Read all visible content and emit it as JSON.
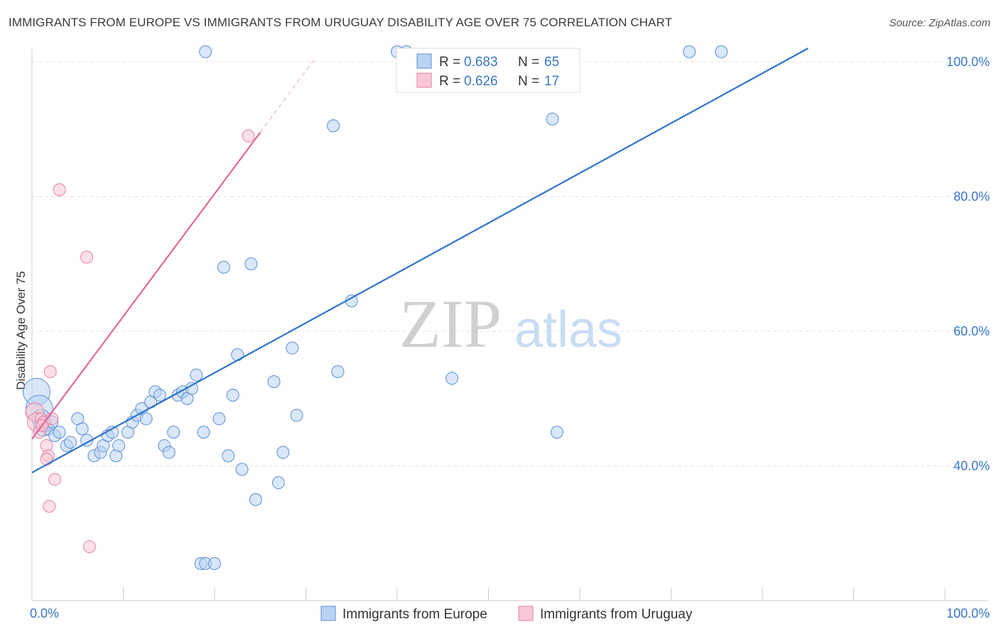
{
  "header": {
    "title": "IMMIGRANTS FROM EUROPE VS IMMIGRANTS FROM URUGUAY DISABILITY AGE OVER 75 CORRELATION CHART",
    "source": "Source: ZipAtlas.com"
  },
  "watermark": {
    "zip": "ZIP",
    "atlas": "atlas"
  },
  "colors": {
    "blue": "#5b8fd6",
    "blue_fill": "#b9d3f3",
    "blue_line": "#2f73c8",
    "pink": "#e57fa3",
    "pink_fill": "#f8c7d6",
    "pink_line": "#e0689a",
    "axis_text": "#3a76c5",
    "grid": "#e3e3e3"
  },
  "stats_legend": [
    {
      "r_label": "R = ",
      "r_value": "0.683",
      "n_label": "N = ",
      "n_value": "65",
      "color": "blue"
    },
    {
      "r_label": "R = ",
      "r_value": "0.626",
      "n_label": "N = ",
      "n_value": "17",
      "color": "pink"
    }
  ],
  "chart_data": {
    "type": "scatter",
    "title": "IMMIGRANTS FROM EUROPE VS IMMIGRANTS FROM URUGUAY DISABILITY AGE OVER 75 CORRELATION CHART",
    "xlabel": "",
    "ylabel": "Disability Age Over 75",
    "xlim": [
      0,
      100
    ],
    "ylim": [
      20,
      102
    ],
    "x_tick_labels": [
      "0.0%",
      "100.0%"
    ],
    "y_ticks": [
      40,
      60,
      80,
      100
    ],
    "y_tick_labels": [
      "40.0%",
      "60.0%",
      "80.0%",
      "100.0%"
    ],
    "legend": [
      "Immigrants from Europe",
      "Immigrants from Uruguay"
    ],
    "series": [
      {
        "name": "Immigrants from Europe",
        "color": "blue",
        "points": [
          [
            0.5,
            51.0,
            3
          ],
          [
            0.8,
            48.5,
            3
          ],
          [
            1.0,
            47.0,
            2
          ],
          [
            1.2,
            45.8,
            2
          ],
          [
            1.5,
            46.0,
            1
          ],
          [
            1.8,
            45.5,
            1
          ],
          [
            2.2,
            46.5,
            1
          ],
          [
            2.5,
            44.5,
            1
          ],
          [
            3.0,
            45.0,
            1
          ],
          [
            3.8,
            43.0,
            1
          ],
          [
            4.2,
            43.5,
            1
          ],
          [
            5.0,
            47.0,
            1
          ],
          [
            5.5,
            45.5,
            1
          ],
          [
            6.0,
            43.8,
            1
          ],
          [
            6.8,
            41.5,
            1
          ],
          [
            7.5,
            42.0,
            1
          ],
          [
            7.8,
            43.0,
            1
          ],
          [
            8.3,
            44.5,
            1
          ],
          [
            8.8,
            45.0,
            1
          ],
          [
            9.2,
            41.5,
            1
          ],
          [
            9.5,
            43.0,
            1
          ],
          [
            10.5,
            45.0,
            1
          ],
          [
            11.0,
            46.5,
            1
          ],
          [
            11.5,
            47.5,
            1
          ],
          [
            12.0,
            48.5,
            1
          ],
          [
            12.5,
            47.0,
            1
          ],
          [
            13.0,
            49.5,
            1
          ],
          [
            13.5,
            51.0,
            1
          ],
          [
            14.0,
            50.5,
            1
          ],
          [
            14.5,
            43.0,
            1
          ],
          [
            15.0,
            42.0,
            1
          ],
          [
            15.5,
            45.0,
            1
          ],
          [
            16.0,
            50.5,
            1
          ],
          [
            16.5,
            51.0,
            1
          ],
          [
            17.0,
            50.0,
            1
          ],
          [
            17.5,
            51.5,
            1
          ],
          [
            18.0,
            53.5,
            1
          ],
          [
            18.5,
            25.5,
            1
          ],
          [
            19.0,
            25.5,
            1
          ],
          [
            20.0,
            25.5,
            1
          ],
          [
            18.8,
            45.0,
            1
          ],
          [
            20.5,
            47.0,
            1
          ],
          [
            21.0,
            69.5,
            1
          ],
          [
            21.5,
            41.5,
            1
          ],
          [
            22.0,
            50.5,
            1
          ],
          [
            22.5,
            56.5,
            1
          ],
          [
            23.0,
            39.5,
            1
          ],
          [
            24.0,
            70.0,
            1
          ],
          [
            24.5,
            35.0,
            1
          ],
          [
            26.5,
            52.5,
            1
          ],
          [
            27.0,
            37.5,
            1
          ],
          [
            27.5,
            42.0,
            1
          ],
          [
            28.5,
            57.5,
            1
          ],
          [
            29.0,
            47.5,
            1
          ],
          [
            33.0,
            90.5,
            1
          ],
          [
            33.5,
            54.0,
            1
          ],
          [
            35.0,
            64.5,
            1
          ],
          [
            46.0,
            53.0,
            1
          ],
          [
            57.0,
            91.5,
            1
          ],
          [
            57.5,
            45.0,
            1
          ],
          [
            19.0,
            101.5,
            1
          ],
          [
            40.0,
            101.5,
            1
          ],
          [
            41.0,
            101.5,
            1
          ],
          [
            72.0,
            101.5,
            1
          ],
          [
            75.5,
            101.5,
            1
          ]
        ]
      },
      {
        "name": "Immigrants from Uruguay",
        "color": "pink",
        "points": [
          [
            0.3,
            48.0,
            2
          ],
          [
            0.5,
            46.5,
            2
          ],
          [
            0.8,
            45.0,
            1
          ],
          [
            1.0,
            47.0,
            1
          ],
          [
            1.3,
            46.5,
            1
          ],
          [
            1.6,
            43.0,
            1
          ],
          [
            1.8,
            41.5,
            1
          ],
          [
            2.0,
            54.0,
            1
          ],
          [
            2.2,
            47.0,
            1
          ],
          [
            2.5,
            38.0,
            1
          ],
          [
            3.0,
            81.0,
            1
          ],
          [
            6.0,
            71.0,
            1
          ],
          [
            6.3,
            28.0,
            1
          ],
          [
            1.6,
            41.0,
            1
          ],
          [
            1.9,
            34.0,
            1
          ],
          [
            1.1,
            46.0,
            1
          ],
          [
            23.7,
            89.0,
            1
          ]
        ]
      }
    ],
    "trend_lines": [
      {
        "series": "Immigrants from Europe",
        "x": [
          0,
          85
        ],
        "y": [
          39.0,
          102.0
        ]
      },
      {
        "series": "Immigrants from Uruguay",
        "x": [
          0,
          25
        ],
        "y": [
          44.0,
          89.5
        ],
        "dashed_extension": {
          "x": [
            25,
            31
          ],
          "y": [
            89.5,
            100.5
          ]
        }
      }
    ]
  }
}
